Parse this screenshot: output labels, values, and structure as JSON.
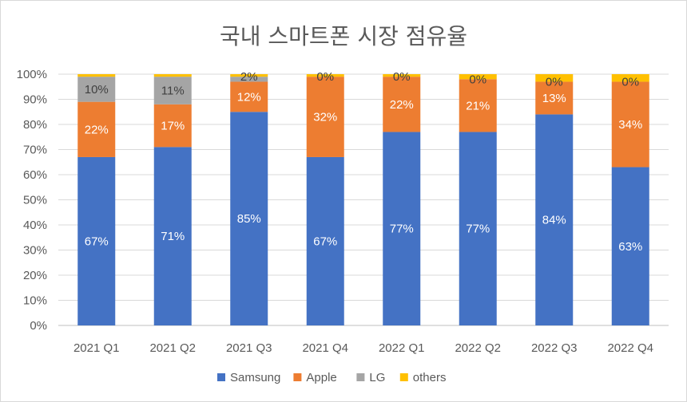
{
  "chart_data": {
    "type": "bar",
    "stacked": true,
    "title": "국내 스마트폰 시장 점유율",
    "categories": [
      "2021 Q1",
      "2021 Q2",
      "2021 Q3",
      "2021 Q4",
      "2022 Q1",
      "2022 Q2",
      "2022 Q3",
      "2022 Q4"
    ],
    "series": [
      {
        "name": "Samsung",
        "color": "#4472c4",
        "label_color": "#ffffff",
        "values": [
          67,
          71,
          85,
          67,
          77,
          77,
          84,
          63
        ]
      },
      {
        "name": "Apple",
        "color": "#ed7d31",
        "label_color": "#ffffff",
        "values": [
          22,
          17,
          12,
          32,
          22,
          21,
          13,
          34
        ]
      },
      {
        "name": "LG",
        "color": "#a5a5a5",
        "label_color": "#404040",
        "values": [
          10,
          11,
          2,
          0,
          0,
          0,
          0,
          0
        ]
      },
      {
        "name": "others",
        "color": "#ffc000",
        "label_color": "#404040",
        "values": [
          1,
          1,
          1,
          1,
          1,
          2,
          3,
          3
        ]
      }
    ],
    "data_labels": [
      [
        "67%",
        "71%",
        "85%",
        "67%",
        "77%",
        "77%",
        "84%",
        "63%"
      ],
      [
        "22%",
        "17%",
        "12%",
        "32%",
        "22%",
        "21%",
        "13%",
        "34%"
      ],
      [
        "10%",
        "11%",
        "2%",
        "0%",
        "0%",
        "0%",
        "0%",
        "0%"
      ],
      [
        "",
        "",
        "",
        "",
        "",
        "",
        "",
        ""
      ]
    ],
    "y_ticks": [
      "0%",
      "10%",
      "20%",
      "30%",
      "40%",
      "50%",
      "60%",
      "70%",
      "80%",
      "90%",
      "100%"
    ],
    "ylim": [
      0,
      100
    ],
    "grid": true,
    "legend_position": "bottom"
  }
}
